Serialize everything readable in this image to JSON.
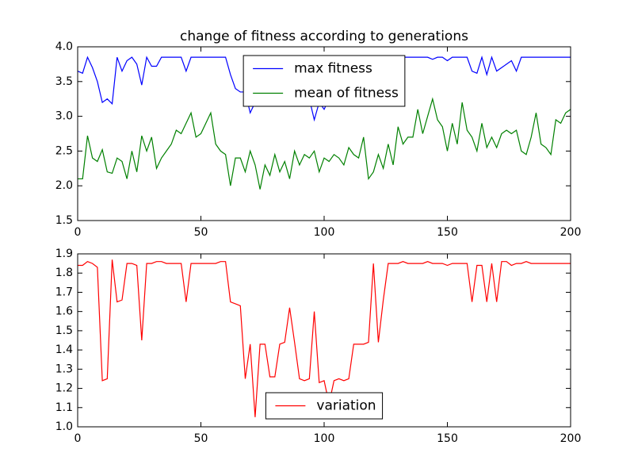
{
  "chart_data": [
    {
      "type": "line",
      "title": "change of fitness according to generations",
      "legend": "upper center",
      "x": [
        0,
        2,
        4,
        6,
        8,
        10,
        12,
        14,
        16,
        18,
        20,
        22,
        24,
        26,
        28,
        30,
        32,
        34,
        36,
        38,
        40,
        42,
        44,
        46,
        48,
        50,
        52,
        54,
        56,
        58,
        60,
        62,
        64,
        66,
        68,
        70,
        72,
        74,
        76,
        78,
        80,
        82,
        84,
        86,
        88,
        90,
        92,
        94,
        96,
        98,
        100,
        102,
        104,
        106,
        108,
        110,
        112,
        114,
        116,
        118,
        120,
        122,
        124,
        126,
        128,
        130,
        132,
        134,
        136,
        138,
        140,
        142,
        144,
        146,
        148,
        150,
        152,
        154,
        156,
        158,
        160,
        162,
        164,
        166,
        168,
        170,
        172,
        174,
        176,
        178,
        180,
        182,
        184,
        186,
        188,
        190,
        192,
        194,
        196,
        198,
        200
      ],
      "series": [
        {
          "name": "max fitness",
          "color": "#0000ff",
          "values": [
            3.65,
            3.62,
            3.85,
            3.7,
            3.5,
            3.2,
            3.25,
            3.18,
            3.85,
            3.65,
            3.8,
            3.85,
            3.75,
            3.45,
            3.85,
            3.72,
            3.72,
            3.85,
            3.85,
            3.85,
            3.85,
            3.85,
            3.65,
            3.85,
            3.85,
            3.85,
            3.85,
            3.85,
            3.85,
            3.85,
            3.85,
            3.6,
            3.4,
            3.35,
            3.35,
            3.05,
            3.2,
            3.25,
            3.2,
            3.25,
            3.2,
            3.3,
            3.2,
            3.25,
            3.15,
            3.3,
            3.2,
            3.25,
            2.95,
            3.2,
            3.1,
            3.25,
            3.3,
            3.2,
            3.25,
            3.35,
            3.3,
            3.4,
            3.35,
            3.5,
            3.45,
            3.6,
            3.7,
            3.85,
            3.85,
            3.85,
            3.85,
            3.85,
            3.85,
            3.85,
            3.85,
            3.85,
            3.82,
            3.85,
            3.85,
            3.8,
            3.85,
            3.85,
            3.85,
            3.85,
            3.65,
            3.62,
            3.85,
            3.6,
            3.85,
            3.65,
            3.7,
            3.75,
            3.8,
            3.65,
            3.85,
            3.85,
            3.85,
            3.85,
            3.85,
            3.85,
            3.85,
            3.85,
            3.85,
            3.85,
            3.85
          ]
        },
        {
          "name": "mean of fitness",
          "color": "#008000",
          "values": [
            2.1,
            2.1,
            2.72,
            2.4,
            2.35,
            2.52,
            2.2,
            2.18,
            2.4,
            2.35,
            2.1,
            2.5,
            2.2,
            2.72,
            2.5,
            2.7,
            2.25,
            2.4,
            2.5,
            2.6,
            2.8,
            2.75,
            2.9,
            3.05,
            2.7,
            2.75,
            2.9,
            3.05,
            2.6,
            2.5,
            2.45,
            2.0,
            2.4,
            2.4,
            2.2,
            2.5,
            2.3,
            1.95,
            2.3,
            2.15,
            2.45,
            2.2,
            2.35,
            2.1,
            2.5,
            2.3,
            2.45,
            2.4,
            2.5,
            2.2,
            2.4,
            2.35,
            2.45,
            2.4,
            2.3,
            2.55,
            2.45,
            2.4,
            2.7,
            2.1,
            2.2,
            2.45,
            2.25,
            2.6,
            2.3,
            2.85,
            2.6,
            2.7,
            2.7,
            3.1,
            2.75,
            3.0,
            3.25,
            2.95,
            2.85,
            2.5,
            2.9,
            2.6,
            3.2,
            2.8,
            2.7,
            2.5,
            2.9,
            2.55,
            2.7,
            2.55,
            2.75,
            2.8,
            2.75,
            2.8,
            2.5,
            2.45,
            2.7,
            3.05,
            2.6,
            2.55,
            2.45,
            2.95,
            2.9,
            3.05,
            3.1
          ]
        }
      ],
      "xlim": [
        0,
        200
      ],
      "xticks": [
        0,
        50,
        100,
        150,
        200
      ],
      "ylim": [
        1.5,
        4.0
      ],
      "yticks": [
        1.5,
        {
          "value": 2,
          "label": "2.0"
        },
        2.5,
        {
          "value": 3,
          "label": "3.0"
        },
        3.5,
        {
          "value": 4,
          "label": "4.0"
        }
      ]
    },
    {
      "type": "line",
      "legend": "lower center",
      "x": [
        0,
        2,
        4,
        6,
        8,
        10,
        12,
        14,
        16,
        18,
        20,
        22,
        24,
        26,
        28,
        30,
        32,
        34,
        36,
        38,
        40,
        42,
        44,
        46,
        48,
        50,
        52,
        54,
        56,
        58,
        60,
        62,
        64,
        66,
        68,
        70,
        72,
        74,
        76,
        78,
        80,
        82,
        84,
        86,
        88,
        90,
        92,
        94,
        96,
        98,
        100,
        102,
        104,
        106,
        108,
        110,
        112,
        114,
        116,
        118,
        120,
        122,
        124,
        126,
        128,
        130,
        132,
        134,
        136,
        138,
        140,
        142,
        144,
        146,
        148,
        150,
        152,
        154,
        156,
        158,
        160,
        162,
        164,
        166,
        168,
        170,
        172,
        174,
        176,
        178,
        180,
        182,
        184,
        186,
        188,
        190,
        192,
        194,
        196,
        198,
        200
      ],
      "series": [
        {
          "name": "variation",
          "color": "#ff0000",
          "values": [
            1.84,
            1.84,
            1.86,
            1.85,
            1.83,
            1.24,
            1.25,
            1.87,
            1.65,
            1.66,
            1.85,
            1.85,
            1.84,
            1.45,
            1.85,
            1.85,
            1.86,
            1.86,
            1.85,
            1.85,
            1.85,
            1.85,
            1.65,
            1.85,
            1.85,
            1.85,
            1.85,
            1.85,
            1.85,
            1.86,
            1.86,
            1.65,
            1.64,
            1.63,
            1.25,
            1.43,
            1.05,
            1.43,
            1.43,
            1.26,
            1.26,
            1.43,
            1.44,
            1.62,
            1.44,
            1.25,
            1.24,
            1.25,
            1.6,
            1.23,
            1.24,
            1.12,
            1.24,
            1.25,
            1.24,
            1.25,
            1.43,
            1.43,
            1.43,
            1.44,
            1.85,
            1.44,
            1.66,
            1.85,
            1.85,
            1.85,
            1.86,
            1.85,
            1.85,
            1.85,
            1.85,
            1.86,
            1.85,
            1.85,
            1.85,
            1.84,
            1.85,
            1.85,
            1.85,
            1.85,
            1.65,
            1.84,
            1.84,
            1.65,
            1.85,
            1.65,
            1.86,
            1.86,
            1.84,
            1.85,
            1.85,
            1.86,
            1.85,
            1.85,
            1.85,
            1.85,
            1.85,
            1.85,
            1.85,
            1.85,
            1.85
          ]
        }
      ],
      "xlim": [
        0,
        200
      ],
      "xticks": [
        0,
        50,
        100,
        150,
        200
      ],
      "ylim": [
        1.0,
        1.9
      ],
      "yticks": [
        {
          "value": 1,
          "label": "1.0"
        },
        1.1,
        1.2,
        1.3,
        1.4,
        1.5,
        1.6,
        1.7,
        1.8,
        1.9
      ]
    }
  ]
}
